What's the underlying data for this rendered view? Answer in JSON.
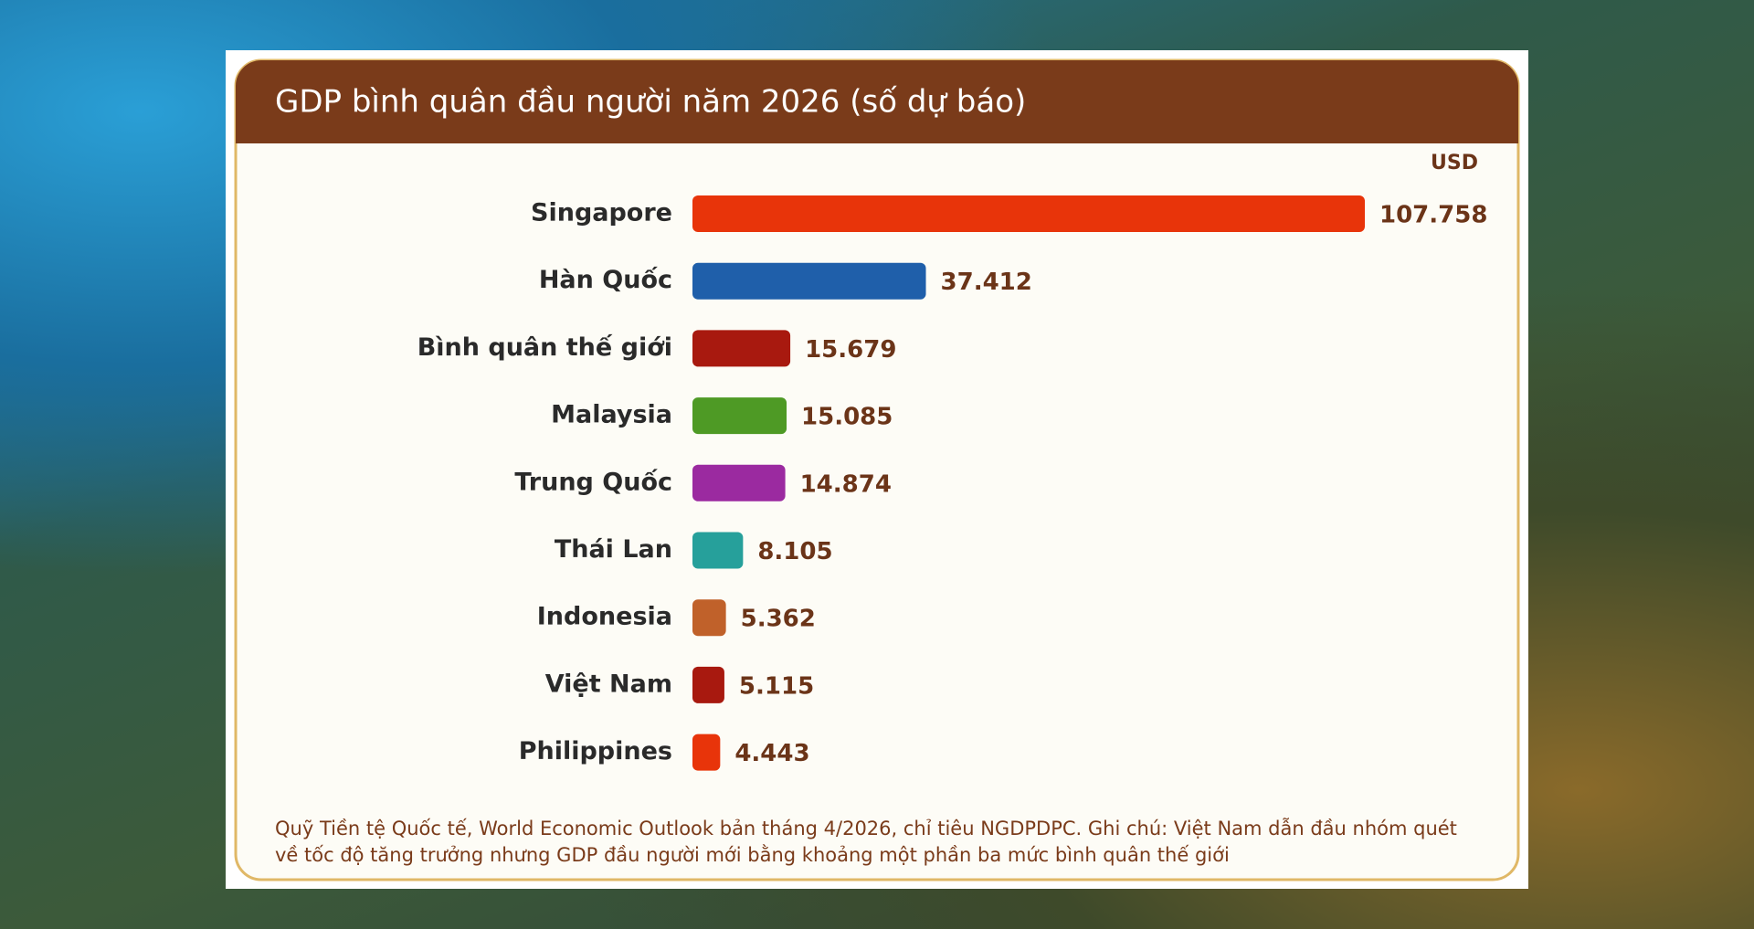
{
  "chart_data": {
    "type": "bar",
    "orientation": "horizontal",
    "title": "GDP bình quân đầu người năm 2026 (số dự báo)",
    "unit": "USD",
    "categories": [
      "Singapore",
      "Hàn Quốc",
      "Bình quân thế giới",
      "Malaysia",
      "Trung Quốc",
      "Thái Lan",
      "Indonesia",
      "Việt Nam",
      "Philippines"
    ],
    "values": [
      107758,
      37412,
      15679,
      15085,
      14874,
      8105,
      5362,
      5115,
      4443
    ],
    "value_labels": [
      "107.758",
      "37.412",
      "15.679",
      "15.085",
      "14.874",
      "8.105",
      "5.362",
      "5.115",
      "4.443"
    ],
    "colors": [
      "#e8340a",
      "#1f5faa",
      "#a8190f",
      "#4e9a25",
      "#9b2aa0",
      "#26a09b",
      "#c0612a",
      "#a8190f",
      "#e8340a"
    ],
    "note": "Quỹ Tiền tệ Quốc tế, World Economic Outlook bản tháng 4/2026, chỉ tiêu NGDPDPC. Ghi chú: Việt Nam dẫn đầu nhóm quét về tốc độ tăng trưởng nhưng GDP đầu người mới bằng khoảng một phần ba mức bình quân thế giới"
  }
}
